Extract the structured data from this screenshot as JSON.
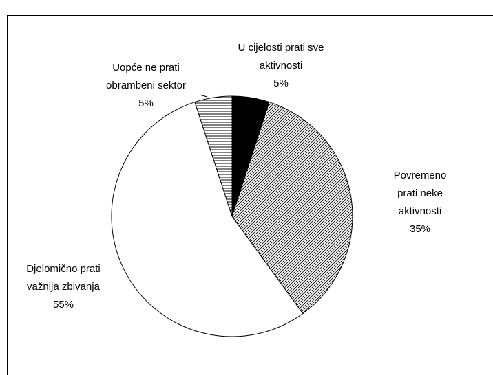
{
  "chart_data": {
    "type": "pie",
    "categories": [
      "U cijelosti prati sve\naktivnosti",
      "Povremeno prati neke\naktivnosti",
      "Djelomično prati\nvažnija zbivanja",
      "Uopće ne prati\nobrambeni sektor"
    ],
    "values": [
      5,
      35,
      55,
      5
    ],
    "value_labels": [
      "5%",
      "35%",
      "55%",
      "5%"
    ],
    "colors": [
      "#000000",
      "hatch-diagonal",
      "#ffffff",
      "hatch-horizontal"
    ]
  }
}
